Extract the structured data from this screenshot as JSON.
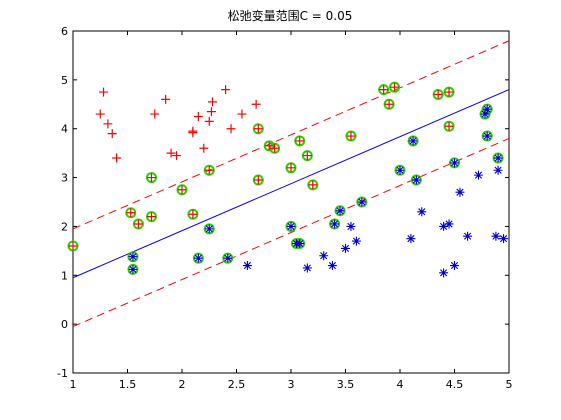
{
  "chart_data": {
    "type": "scatter",
    "title": "松弛变量范围C = 0.05",
    "xlim": [
      1,
      5
    ],
    "ylim": [
      -1,
      6
    ],
    "x_ticks": [
      1,
      1.5,
      2,
      2.5,
      3,
      3.5,
      4,
      4.5,
      5
    ],
    "y_ticks": [
      -1,
      0,
      1,
      2,
      3,
      4,
      5,
      6
    ],
    "grid": false,
    "colors": {
      "plus_marker": "#ff0000",
      "star_marker": "#0000cc",
      "support_circle": "#33cc00",
      "decision_line": "#0000ff",
      "margin_line": "#ff0000"
    },
    "lines": [
      {
        "role": "decision-boundary",
        "style": "solid",
        "x": [
          1,
          5
        ],
        "y": [
          0.95,
          4.8
        ]
      },
      {
        "role": "upper-margin",
        "style": "dashed",
        "x": [
          1,
          5
        ],
        "y": [
          1.95,
          5.8
        ]
      },
      {
        "role": "lower-margin",
        "style": "dashed",
        "x": [
          1,
          5
        ],
        "y": [
          -0.05,
          3.8
        ]
      }
    ],
    "class_plus": [
      [
        1.25,
        4.3
      ],
      [
        1.28,
        4.75
      ],
      [
        1.32,
        4.1
      ],
      [
        1.36,
        3.9
      ],
      [
        1.4,
        3.4
      ],
      [
        1.75,
        4.3
      ],
      [
        1.85,
        4.6
      ],
      [
        1.9,
        3.5
      ],
      [
        1.95,
        3.45
      ],
      [
        2.1,
        3.95
      ],
      [
        2.1,
        3.92
      ],
      [
        2.15,
        4.25
      ],
      [
        2.2,
        3.6
      ],
      [
        2.25,
        4.15
      ],
      [
        2.27,
        4.35
      ],
      [
        2.28,
        4.55
      ],
      [
        2.4,
        4.8
      ],
      [
        2.45,
        4.0
      ],
      [
        2.55,
        4.3
      ],
      [
        2.68,
        4.5
      ],
      [
        1.0,
        1.6
      ],
      [
        1.53,
        2.28
      ],
      [
        1.6,
        2.05
      ],
      [
        1.72,
        2.2
      ],
      [
        1.72,
        3.0
      ],
      [
        2.0,
        2.75
      ],
      [
        2.1,
        2.25
      ],
      [
        2.25,
        3.15
      ],
      [
        2.7,
        4.0
      ],
      [
        2.7,
        2.95
      ],
      [
        2.8,
        3.65
      ],
      [
        2.85,
        3.6
      ],
      [
        3.0,
        3.2
      ],
      [
        3.08,
        3.75
      ],
      [
        3.15,
        3.45
      ],
      [
        3.2,
        2.85
      ],
      [
        3.55,
        3.85
      ],
      [
        3.85,
        4.8
      ],
      [
        3.9,
        4.5
      ],
      [
        3.95,
        4.85
      ],
      [
        4.35,
        4.7
      ],
      [
        4.45,
        4.75
      ],
      [
        4.45,
        4.05
      ]
    ],
    "class_star": [
      [
        2.6,
        1.2
      ],
      [
        3.15,
        1.15
      ],
      [
        3.3,
        1.4
      ],
      [
        3.38,
        1.2
      ],
      [
        3.5,
        1.55
      ],
      [
        3.55,
        2.0
      ],
      [
        3.6,
        1.7
      ],
      [
        4.1,
        1.75
      ],
      [
        4.2,
        2.3
      ],
      [
        4.4,
        2.0
      ],
      [
        4.4,
        1.05
      ],
      [
        4.45,
        2.05
      ],
      [
        4.5,
        1.2
      ],
      [
        4.55,
        2.7
      ],
      [
        4.62,
        1.8
      ],
      [
        4.72,
        3.05
      ],
      [
        4.88,
        1.8
      ],
      [
        4.95,
        1.75
      ],
      [
        4.9,
        3.15
      ],
      [
        1.55,
        1.12
      ],
      [
        1.55,
        1.38
      ],
      [
        2.15,
        1.35
      ],
      [
        2.25,
        1.95
      ],
      [
        2.42,
        1.35
      ],
      [
        3.0,
        2.0
      ],
      [
        3.05,
        1.65
      ],
      [
        3.08,
        1.65
      ],
      [
        3.4,
        2.05
      ],
      [
        3.45,
        2.32
      ],
      [
        3.65,
        2.5
      ],
      [
        4.0,
        3.15
      ],
      [
        4.12,
        3.75
      ],
      [
        4.15,
        2.95
      ],
      [
        4.5,
        3.3
      ],
      [
        4.8,
        3.85
      ],
      [
        4.9,
        3.4
      ],
      [
        4.78,
        4.3
      ],
      [
        4.8,
        4.4
      ]
    ],
    "support_vectors": [
      [
        1.0,
        1.6
      ],
      [
        1.53,
        2.28
      ],
      [
        1.6,
        2.05
      ],
      [
        1.72,
        2.2
      ],
      [
        1.72,
        3.0
      ],
      [
        2.0,
        2.75
      ],
      [
        2.1,
        2.25
      ],
      [
        2.25,
        3.15
      ],
      [
        2.7,
        4.0
      ],
      [
        2.7,
        2.95
      ],
      [
        2.8,
        3.65
      ],
      [
        2.85,
        3.6
      ],
      [
        3.0,
        3.2
      ],
      [
        3.08,
        3.75
      ],
      [
        3.15,
        3.45
      ],
      [
        3.2,
        2.85
      ],
      [
        3.55,
        3.85
      ],
      [
        3.85,
        4.8
      ],
      [
        3.9,
        4.5
      ],
      [
        3.95,
        4.85
      ],
      [
        4.35,
        4.7
      ],
      [
        4.45,
        4.75
      ],
      [
        4.45,
        4.05
      ],
      [
        1.55,
        1.12
      ],
      [
        1.55,
        1.38
      ],
      [
        2.15,
        1.35
      ],
      [
        2.25,
        1.95
      ],
      [
        2.42,
        1.35
      ],
      [
        3.0,
        2.0
      ],
      [
        3.05,
        1.65
      ],
      [
        3.08,
        1.65
      ],
      [
        3.4,
        2.05
      ],
      [
        3.45,
        2.32
      ],
      [
        3.65,
        2.5
      ],
      [
        4.0,
        3.15
      ],
      [
        4.12,
        3.75
      ],
      [
        4.15,
        2.95
      ],
      [
        4.5,
        3.3
      ],
      [
        4.8,
        3.85
      ],
      [
        4.9,
        3.4
      ],
      [
        4.78,
        4.3
      ],
      [
        4.8,
        4.4
      ]
    ]
  }
}
